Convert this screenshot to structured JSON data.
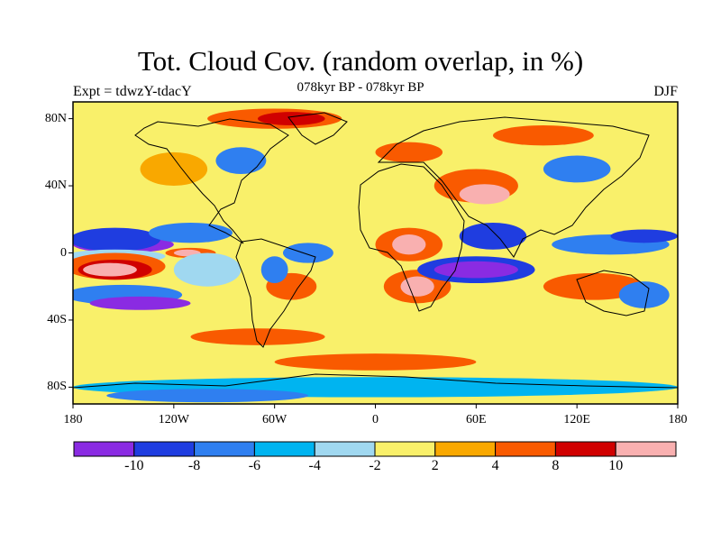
{
  "header": {
    "title": "Tot. Cloud Cov. (random overlap, in %)",
    "subtitle": "078kyr BP - 078kyr BP",
    "left_label": "Expt = tdwzY-tdacY",
    "right_label": "DJF"
  },
  "map": {
    "projection": "cylindrical-equidistant",
    "lon_range": [
      -180,
      180
    ],
    "lat_range": [
      -90,
      90
    ],
    "lat_ticks": [
      {
        "value": 80,
        "label": "80N"
      },
      {
        "value": 40,
        "label": "40N"
      },
      {
        "value": 0,
        "label": "0"
      },
      {
        "value": -40,
        "label": "40S"
      },
      {
        "value": -80,
        "label": "80S"
      }
    ],
    "lon_ticks": [
      {
        "value": -180,
        "label": "180"
      },
      {
        "value": -120,
        "label": "120W"
      },
      {
        "value": -60,
        "label": "60W"
      },
      {
        "value": 0,
        "label": "0"
      },
      {
        "value": 60,
        "label": "60E"
      },
      {
        "value": 120,
        "label": "120E"
      },
      {
        "value": 180,
        "label": "180"
      }
    ],
    "background_color": "#f9f06a",
    "anomaly_regions": [
      {
        "lon": -150,
        "lat": 5,
        "rx": 30,
        "ry": 5,
        "level": 0
      },
      {
        "lon": -155,
        "lat": 8,
        "rx": 27,
        "ry": 7,
        "level": 1
      },
      {
        "lon": -165,
        "lat": -8,
        "rx": 20,
        "ry": 5,
        "level": 3
      },
      {
        "lon": -155,
        "lat": -2,
        "rx": 30,
        "ry": 4,
        "level": 4
      },
      {
        "lon": -155,
        "lat": -8,
        "rx": 30,
        "ry": 8,
        "level": 7
      },
      {
        "lon": -155,
        "lat": -10,
        "rx": 22,
        "ry": 6,
        "level": 8
      },
      {
        "lon": -158,
        "lat": -10,
        "rx": 16,
        "ry": 4,
        "level": 9
      },
      {
        "lon": -150,
        "lat": -25,
        "rx": 35,
        "ry": 6,
        "level": 2
      },
      {
        "lon": -140,
        "lat": -30,
        "rx": 30,
        "ry": 4,
        "level": 0
      },
      {
        "lon": -110,
        "lat": 0,
        "rx": 15,
        "ry": 3,
        "level": 7
      },
      {
        "lon": -112,
        "lat": 0,
        "rx": 8,
        "ry": 2,
        "level": 9
      },
      {
        "lon": -100,
        "lat": -10,
        "rx": 20,
        "ry": 10,
        "level": 4
      },
      {
        "lon": -110,
        "lat": 12,
        "rx": 25,
        "ry": 6,
        "level": 2
      },
      {
        "lon": -40,
        "lat": 0,
        "rx": 15,
        "ry": 6,
        "level": 2
      },
      {
        "lon": -50,
        "lat": -20,
        "rx": 15,
        "ry": 8,
        "level": 7
      },
      {
        "lon": -60,
        "lat": -10,
        "rx": 8,
        "ry": 8,
        "level": 2
      },
      {
        "lon": -70,
        "lat": -50,
        "rx": 40,
        "ry": 5,
        "level": 7
      },
      {
        "lon": -120,
        "lat": 50,
        "rx": 20,
        "ry": 10,
        "level": 6
      },
      {
        "lon": -80,
        "lat": 55,
        "rx": 15,
        "ry": 8,
        "level": 2
      },
      {
        "lon": -60,
        "lat": 80,
        "rx": 40,
        "ry": 6,
        "level": 7
      },
      {
        "lon": -50,
        "lat": 80,
        "rx": 20,
        "ry": 4,
        "level": 8
      },
      {
        "lon": 20,
        "lat": 5,
        "rx": 20,
        "ry": 10,
        "level": 7
      },
      {
        "lon": 20,
        "lat": 5,
        "rx": 10,
        "ry": 6,
        "level": 9
      },
      {
        "lon": 25,
        "lat": -20,
        "rx": 20,
        "ry": 10,
        "level": 7
      },
      {
        "lon": 25,
        "lat": -20,
        "rx": 10,
        "ry": 6,
        "level": 9
      },
      {
        "lon": 60,
        "lat": -10,
        "rx": 35,
        "ry": 8,
        "level": 1
      },
      {
        "lon": 60,
        "lat": -10,
        "rx": 25,
        "ry": 5,
        "level": 0
      },
      {
        "lon": 60,
        "lat": 40,
        "rx": 25,
        "ry": 10,
        "level": 7
      },
      {
        "lon": 65,
        "lat": 35,
        "rx": 15,
        "ry": 6,
        "level": 9
      },
      {
        "lon": 70,
        "lat": 10,
        "rx": 20,
        "ry": 8,
        "level": 1
      },
      {
        "lon": 140,
        "lat": 5,
        "rx": 35,
        "ry": 6,
        "level": 2
      },
      {
        "lon": 160,
        "lat": 10,
        "rx": 20,
        "ry": 4,
        "level": 1
      },
      {
        "lon": 130,
        "lat": -20,
        "rx": 30,
        "ry": 8,
        "level": 7
      },
      {
        "lon": 160,
        "lat": -25,
        "rx": 15,
        "ry": 8,
        "level": 2
      },
      {
        "lon": 20,
        "lat": 60,
        "rx": 20,
        "ry": 6,
        "level": 7
      },
      {
        "lon": 100,
        "lat": 70,
        "rx": 30,
        "ry": 6,
        "level": 7
      },
      {
        "lon": 120,
        "lat": 50,
        "rx": 20,
        "ry": 8,
        "level": 2
      },
      {
        "lon": 0,
        "lat": -65,
        "rx": 60,
        "ry": 5,
        "level": 7
      },
      {
        "lon": 0,
        "lat": -80,
        "rx": 180,
        "ry": 6,
        "level": 3
      },
      {
        "lon": -100,
        "lat": -85,
        "rx": 60,
        "ry": 4,
        "level": 2
      }
    ]
  },
  "colorbar": {
    "colors": [
      "#8a2be2",
      "#1f3de0",
      "#2f7ff0",
      "#00b4f0",
      "#a0d8f0",
      "#f9f06a",
      "#f9a800",
      "#f95a00",
      "#d00000",
      "#f9b0b0"
    ],
    "tick_labels": [
      "-10",
      "-8",
      "-6",
      "-4",
      "-2",
      "2",
      "4",
      "8",
      "10"
    ]
  }
}
